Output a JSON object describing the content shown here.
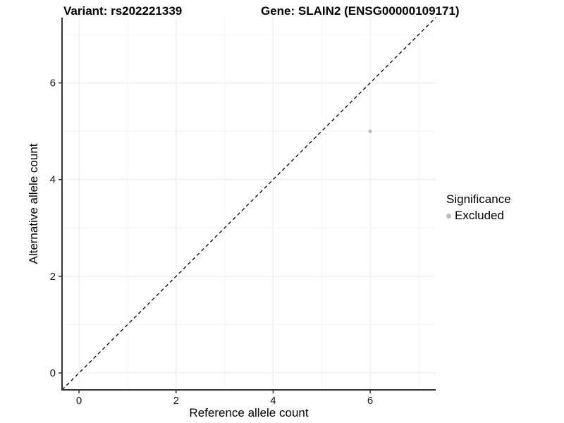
{
  "titles": {
    "left": "Variant: rs202221339",
    "right": "Gene: SLAIN2 (ENSG00000109171)"
  },
  "chart_data": {
    "type": "scatter",
    "xlabel": "Reference allele count",
    "ylabel": "Alternative allele count",
    "xlim": [
      -0.35,
      7.35
    ],
    "ylim": [
      -0.35,
      7.35
    ],
    "x_ticks": [
      0,
      2,
      4,
      6
    ],
    "y_ticks": [
      0,
      2,
      4,
      6
    ],
    "x_minor": [
      1,
      3,
      5,
      7
    ],
    "y_minor": [
      1,
      3,
      5,
      7
    ],
    "grid": "on",
    "identity_line": {
      "style": "dashed",
      "from": [
        -0.35,
        -0.35
      ],
      "to": [
        7.35,
        7.35
      ]
    },
    "series": [
      {
        "name": "Excluded",
        "color": "#bebebe",
        "points": [
          {
            "x": 6,
            "y": 5
          }
        ]
      }
    ],
    "legend": {
      "title": "Significance",
      "position": "right",
      "items": [
        {
          "label": "Excluded",
          "color": "#bebebe"
        }
      ]
    }
  },
  "colors": {
    "grid_major": "#e9e9e9",
    "grid_minor": "#f4f4f4",
    "axis_line": "#333333",
    "tick_text": "#1a1a1a",
    "identity_line": "#000000",
    "point": "#bebebe"
  }
}
